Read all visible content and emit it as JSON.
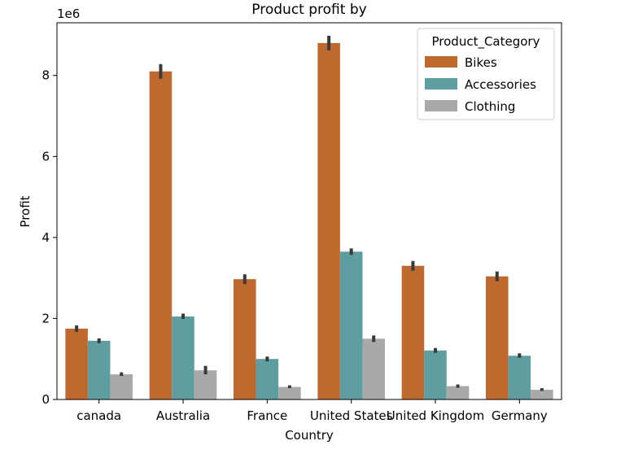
{
  "chart_data": {
    "type": "bar",
    "title": "Product profit by",
    "xlabel": "Country",
    "ylabel": "Profit",
    "y_scale_label": "1e6",
    "ylim": [
      0,
      9.3
    ],
    "yticks": [
      0,
      2,
      4,
      6,
      8
    ],
    "ytick_labels": [
      "0",
      "2",
      "4",
      "6",
      "8"
    ],
    "categories": [
      "canada",
      "Australia",
      "France",
      "United States",
      "United Kingdom",
      "Germany"
    ],
    "legend": {
      "title": "Product_Category",
      "position": "top-right"
    },
    "grid": false,
    "series": [
      {
        "name": "Bikes",
        "color": "#c0692f",
        "values": [
          1.75,
          8.1,
          2.97,
          8.8,
          3.3,
          3.04
        ],
        "errors": [
          [
            1.67,
            1.83
          ],
          [
            7.92,
            8.28
          ],
          [
            2.85,
            3.09
          ],
          [
            8.62,
            8.98
          ],
          [
            3.18,
            3.42
          ],
          [
            2.92,
            3.16
          ]
        ]
      },
      {
        "name": "Accessories",
        "color": "#5f9ea0",
        "values": [
          1.45,
          2.05,
          1.0,
          3.65,
          1.21,
          1.08
        ],
        "errors": [
          [
            1.39,
            1.51
          ],
          [
            1.99,
            2.12
          ],
          [
            0.94,
            1.06
          ],
          [
            3.57,
            3.73
          ],
          [
            1.15,
            1.27
          ],
          [
            1.03,
            1.14
          ]
        ]
      },
      {
        "name": "Clothing",
        "color": "#a9a9a9",
        "values": [
          0.62,
          0.72,
          0.31,
          1.5,
          0.33,
          0.24
        ],
        "errors": [
          [
            0.58,
            0.67
          ],
          [
            0.62,
            0.83
          ],
          [
            0.28,
            0.35
          ],
          [
            1.42,
            1.58
          ],
          [
            0.29,
            0.37
          ],
          [
            0.21,
            0.28
          ]
        ]
      }
    ]
  }
}
